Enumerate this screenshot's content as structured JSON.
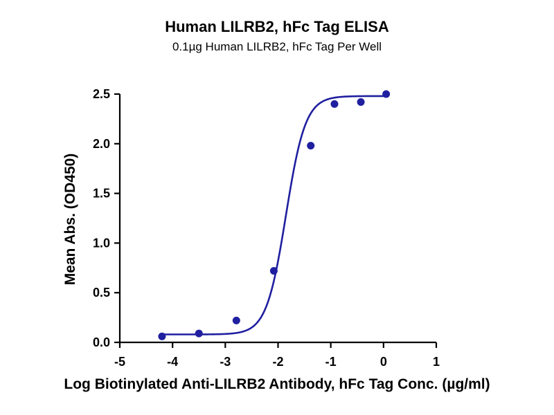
{
  "chart_data": {
    "type": "scatter",
    "title": "Human LILRB2, hFc Tag ELISA",
    "subtitle": "0.1µg Human LILRB2, hFc Tag Per Well",
    "xlabel": "Log Biotinylated Anti-LILRB2 Antibody, hFc Tag Conc. (µg/ml)",
    "ylabel": "Mean Abs. (OD450)",
    "xlim": [
      -5,
      1
    ],
    "ylim": [
      0,
      2.5
    ],
    "x_ticks": [
      "-5",
      "-4",
      "-3",
      "-2",
      "-1",
      "0",
      "1"
    ],
    "y_ticks": [
      "0.0",
      "0.5",
      "1.0",
      "1.5",
      "2.0",
      "2.5"
    ],
    "grid": false,
    "colors": {
      "series": "#1f1fa0"
    },
    "series": [
      {
        "x": [
          -4.2,
          -3.5,
          -2.79,
          -2.08,
          -1.38,
          -0.93,
          -0.43,
          0.05
        ],
        "y": [
          0.06,
          0.09,
          0.22,
          0.72,
          1.98,
          2.4,
          2.42,
          2.5
        ],
        "fit": "sigmoidal four-parameter logistic curve"
      }
    ]
  }
}
